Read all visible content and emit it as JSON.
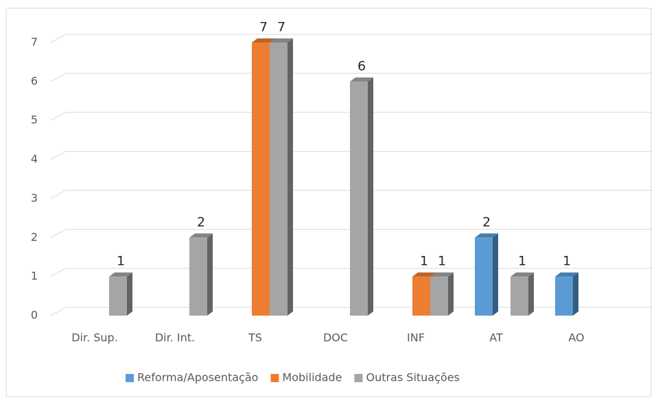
{
  "chart_data": {
    "type": "bar",
    "categories": [
      "Dir. Sup.",
      "Dir. Int.",
      "TS",
      "DOC",
      "INF",
      "AT",
      "AO"
    ],
    "series": [
      {
        "name": "Reforma/Aposentação",
        "color": "#5b9bd5",
        "values": [
          null,
          null,
          null,
          null,
          null,
          2,
          1
        ]
      },
      {
        "name": "Mobilidade",
        "color": "#ed7d31",
        "values": [
          null,
          null,
          7,
          null,
          1,
          null,
          null
        ]
      },
      {
        "name": "Outras Situações",
        "color": "#a5a5a5",
        "values": [
          1,
          2,
          7,
          6,
          1,
          1,
          null
        ]
      }
    ],
    "ylim": [
      0,
      7
    ],
    "yticks": [
      0,
      1,
      2,
      3,
      4,
      5,
      6,
      7
    ],
    "grid": true,
    "legend": "bottom"
  }
}
